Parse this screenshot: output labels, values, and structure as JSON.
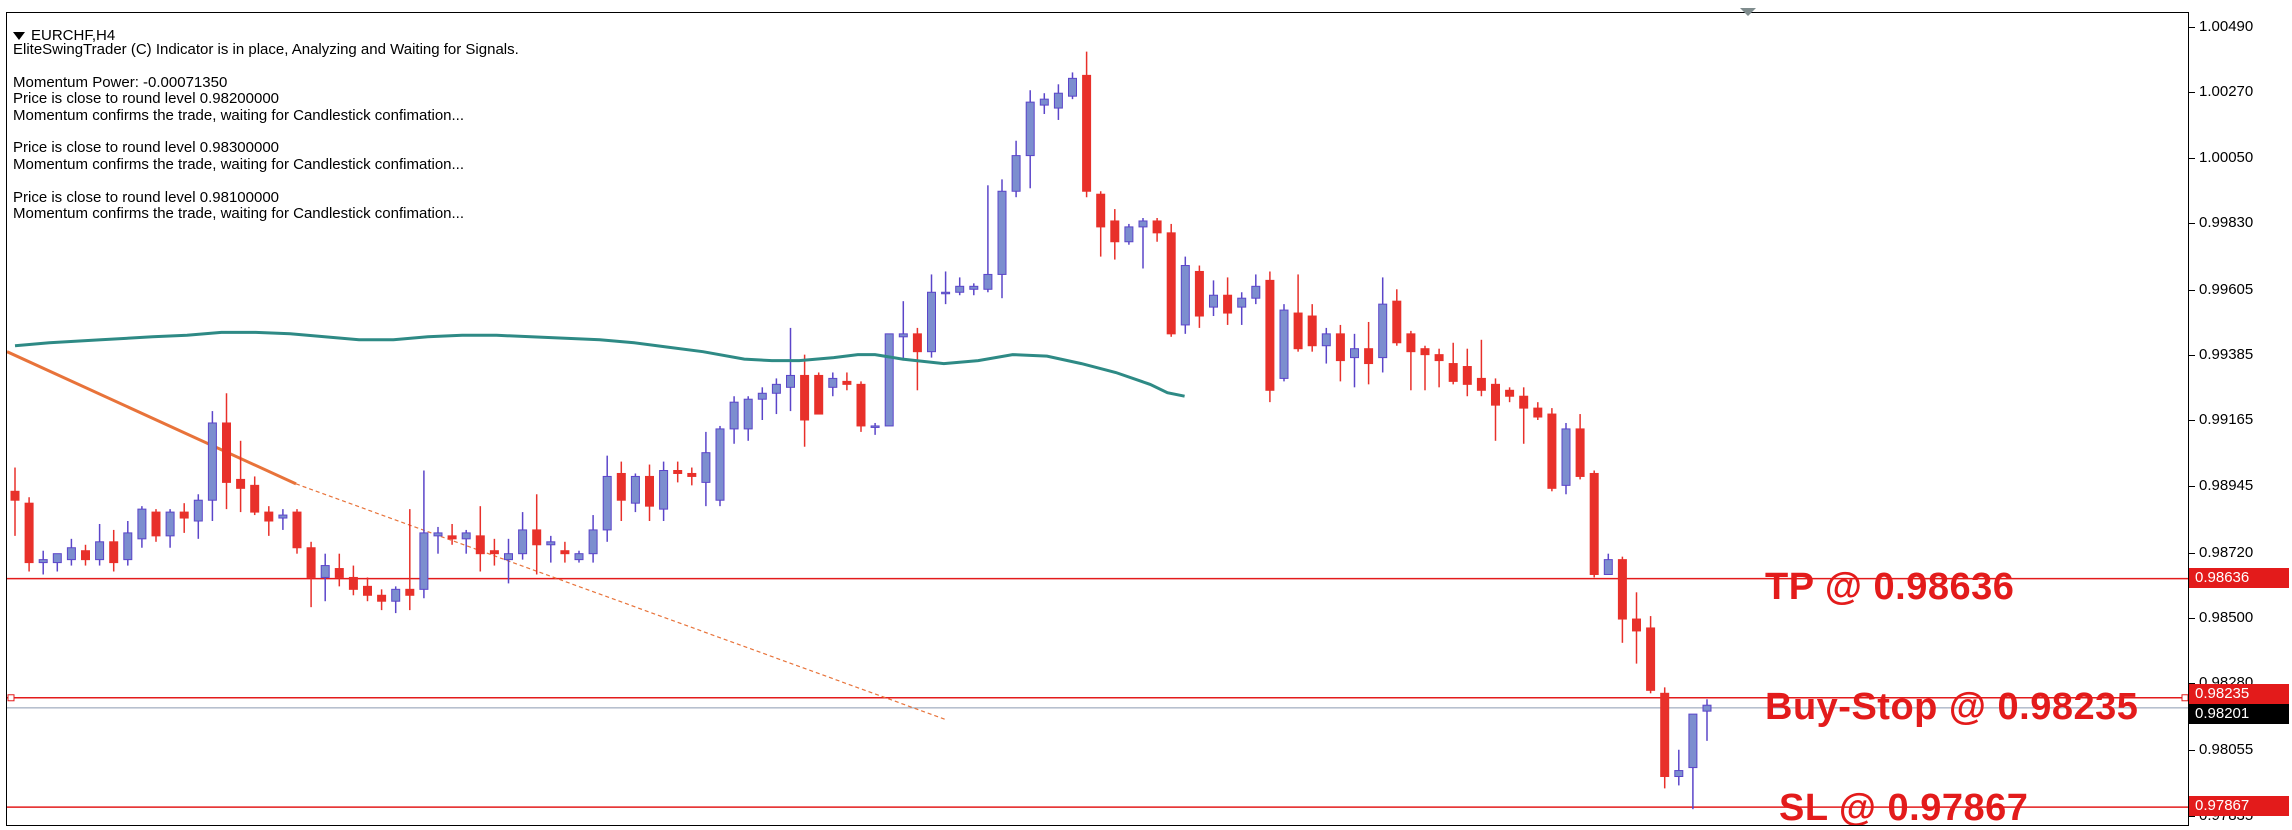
{
  "window": {
    "symbol_timeframe": "EURCHF,H4"
  },
  "indicator": {
    "headline": "EliteSwingTrader (C) Indicator is in place, Analyzing and Waiting for Signals.",
    "momentum_power": "Momentum Power: -0.00071350",
    "blocks": [
      {
        "round_level": "Price is close to round level 0.98200000",
        "confirmation": "Momentum confirms the trade, waiting for Candlestick confimation..."
      },
      {
        "round_level": "Price is close to round level 0.98300000",
        "confirmation": "Momentum confirms the trade, waiting for Candlestick confimation..."
      },
      {
        "round_level": "Price is close to round level 0.98100000",
        "confirmation": "Momentum confirms the trade, waiting for Candlestick confimation..."
      }
    ]
  },
  "trade_levels": {
    "tp": {
      "label": "TP @ 0.98636",
      "price": 0.98636,
      "box": "0.98636",
      "color": "#e31b1b"
    },
    "buy_stop": {
      "label": "Buy-Stop @ 0.98235",
      "price": 0.98235,
      "box": "0.98235",
      "color": "#e31b1b"
    },
    "sl": {
      "label": "SL @ 0.97867",
      "price": 0.97867,
      "box": "0.97867",
      "color": "#e31b1b"
    },
    "current_price": {
      "price": 0.98201,
      "box": "0.98201"
    }
  },
  "price_axis": {
    "ticks": [
      "1.00490",
      "1.00270",
      "1.00050",
      "0.99830",
      "0.99605",
      "0.99385",
      "0.99165",
      "0.98945",
      "0.98720",
      "0.98500",
      "0.98280",
      "0.98055",
      "0.97835"
    ],
    "tick_values": [
      1.0049,
      1.0027,
      1.0005,
      0.9983,
      0.99605,
      0.99385,
      0.99165,
      0.98945,
      0.9872,
      0.985,
      0.9828,
      0.98055,
      0.97835
    ]
  },
  "colors": {
    "bull": "#7c8ecf",
    "bull_border": "#5b45c9",
    "bear": "#e8302a",
    "moving_average": "#2e8a85",
    "trendline": "#e8733a",
    "level_line": "#e31b1b",
    "bid_line": "#8c9ab0"
  },
  "chart_data": {
    "type": "candlestick",
    "instrument": "EURCHF",
    "timeframe": "H4",
    "ylim": [
      0.978,
      1.0054
    ],
    "candles": [
      {
        "o": 0.9893,
        "h": 0.9901,
        "l": 0.9878,
        "c": 0.989
      },
      {
        "o": 0.9889,
        "h": 0.9891,
        "l": 0.9866,
        "c": 0.9869
      },
      {
        "o": 0.9869,
        "h": 0.9873,
        "l": 0.9865,
        "c": 0.987
      },
      {
        "o": 0.9869,
        "h": 0.9872,
        "l": 0.9866,
        "c": 0.9872
      },
      {
        "o": 0.987,
        "h": 0.9877,
        "l": 0.9868,
        "c": 0.9874
      },
      {
        "o": 0.9873,
        "h": 0.9875,
        "l": 0.9868,
        "c": 0.987
      },
      {
        "o": 0.987,
        "h": 0.9882,
        "l": 0.9868,
        "c": 0.9876
      },
      {
        "o": 0.9876,
        "h": 0.988,
        "l": 0.9866,
        "c": 0.9869
      },
      {
        "o": 0.987,
        "h": 0.9883,
        "l": 0.9868,
        "c": 0.9879
      },
      {
        "o": 0.9877,
        "h": 0.9888,
        "l": 0.9874,
        "c": 0.9887
      },
      {
        "o": 0.9886,
        "h": 0.9887,
        "l": 0.9876,
        "c": 0.9878
      },
      {
        "o": 0.9878,
        "h": 0.9887,
        "l": 0.9874,
        "c": 0.9886
      },
      {
        "o": 0.9886,
        "h": 0.9889,
        "l": 0.9879,
        "c": 0.9884
      },
      {
        "o": 0.9883,
        "h": 0.9892,
        "l": 0.9877,
        "c": 0.989
      },
      {
        "o": 0.989,
        "h": 0.992,
        "l": 0.9883,
        "c": 0.9916
      },
      {
        "o": 0.9916,
        "h": 0.9926,
        "l": 0.9887,
        "c": 0.9896
      },
      {
        "o": 0.9897,
        "h": 0.991,
        "l": 0.9886,
        "c": 0.9894
      },
      {
        "o": 0.9895,
        "h": 0.9898,
        "l": 0.9885,
        "c": 0.9886
      },
      {
        "o": 0.9886,
        "h": 0.9888,
        "l": 0.9878,
        "c": 0.9883
      },
      {
        "o": 0.9884,
        "h": 0.9887,
        "l": 0.988,
        "c": 0.9885
      },
      {
        "o": 0.9886,
        "h": 0.9887,
        "l": 0.9872,
        "c": 0.9874
      },
      {
        "o": 0.9874,
        "h": 0.9876,
        "l": 0.9854,
        "c": 0.9864
      },
      {
        "o": 0.9864,
        "h": 0.9872,
        "l": 0.9856,
        "c": 0.9868
      },
      {
        "o": 0.9867,
        "h": 0.9872,
        "l": 0.9861,
        "c": 0.9864
      },
      {
        "o": 0.9864,
        "h": 0.9868,
        "l": 0.9858,
        "c": 0.986
      },
      {
        "o": 0.9861,
        "h": 0.9864,
        "l": 0.9856,
        "c": 0.9858
      },
      {
        "o": 0.9858,
        "h": 0.986,
        "l": 0.9853,
        "c": 0.9856
      },
      {
        "o": 0.9856,
        "h": 0.9861,
        "l": 0.9852,
        "c": 0.986
      },
      {
        "o": 0.986,
        "h": 0.9887,
        "l": 0.9853,
        "c": 0.9858
      },
      {
        "o": 0.986,
        "h": 0.99,
        "l": 0.9857,
        "c": 0.9879
      },
      {
        "o": 0.9878,
        "h": 0.9881,
        "l": 0.9872,
        "c": 0.9879
      },
      {
        "o": 0.9878,
        "h": 0.9882,
        "l": 0.9875,
        "c": 0.9877
      },
      {
        "o": 0.9877,
        "h": 0.988,
        "l": 0.9872,
        "c": 0.9879
      },
      {
        "o": 0.9878,
        "h": 0.9888,
        "l": 0.9866,
        "c": 0.9872
      },
      {
        "o": 0.9873,
        "h": 0.9877,
        "l": 0.9868,
        "c": 0.9872
      },
      {
        "o": 0.987,
        "h": 0.9877,
        "l": 0.9862,
        "c": 0.9872
      },
      {
        "o": 0.9872,
        "h": 0.9886,
        "l": 0.987,
        "c": 0.988
      },
      {
        "o": 0.988,
        "h": 0.9892,
        "l": 0.9865,
        "c": 0.9875
      },
      {
        "o": 0.9875,
        "h": 0.9878,
        "l": 0.9869,
        "c": 0.9876
      },
      {
        "o": 0.9873,
        "h": 0.9876,
        "l": 0.9869,
        "c": 0.9872
      },
      {
        "o": 0.987,
        "h": 0.9873,
        "l": 0.9869,
        "c": 0.9872
      },
      {
        "o": 0.9872,
        "h": 0.9885,
        "l": 0.9869,
        "c": 0.988
      },
      {
        "o": 0.988,
        "h": 0.9905,
        "l": 0.9876,
        "c": 0.9898
      },
      {
        "o": 0.9899,
        "h": 0.9903,
        "l": 0.9883,
        "c": 0.989
      },
      {
        "o": 0.9889,
        "h": 0.9899,
        "l": 0.9886,
        "c": 0.9898
      },
      {
        "o": 0.9898,
        "h": 0.9902,
        "l": 0.9883,
        "c": 0.9888
      },
      {
        "o": 0.9887,
        "h": 0.9903,
        "l": 0.9883,
        "c": 0.99
      },
      {
        "o": 0.99,
        "h": 0.9903,
        "l": 0.9896,
        "c": 0.9899
      },
      {
        "o": 0.9899,
        "h": 0.9901,
        "l": 0.9895,
        "c": 0.9898
      },
      {
        "o": 0.9896,
        "h": 0.9913,
        "l": 0.9888,
        "c": 0.9906
      },
      {
        "o": 0.989,
        "h": 0.9915,
        "l": 0.9888,
        "c": 0.9914
      },
      {
        "o": 0.9914,
        "h": 0.9925,
        "l": 0.9909,
        "c": 0.9923
      },
      {
        "o": 0.9914,
        "h": 0.9925,
        "l": 0.991,
        "c": 0.9924
      },
      {
        "o": 0.9924,
        "h": 0.9928,
        "l": 0.9917,
        "c": 0.9926
      },
      {
        "o": 0.9926,
        "h": 0.9931,
        "l": 0.9919,
        "c": 0.9929
      },
      {
        "o": 0.9928,
        "h": 0.9948,
        "l": 0.992,
        "c": 0.9932
      },
      {
        "o": 0.9932,
        "h": 0.9939,
        "l": 0.9908,
        "c": 0.9917
      },
      {
        "o": 0.9932,
        "h": 0.9933,
        "l": 0.9919,
        "c": 0.9919
      },
      {
        "o": 0.9928,
        "h": 0.9933,
        "l": 0.9925,
        "c": 0.9931
      },
      {
        "o": 0.993,
        "h": 0.9933,
        "l": 0.9927,
        "c": 0.9929
      },
      {
        "o": 0.9929,
        "h": 0.993,
        "l": 0.9913,
        "c": 0.9915
      },
      {
        "o": 0.9915,
        "h": 0.9916,
        "l": 0.9912,
        "c": 0.9915
      },
      {
        "o": 0.9915,
        "h": 0.9946,
        "l": 0.9915,
        "c": 0.9946
      },
      {
        "o": 0.9945,
        "h": 0.9957,
        "l": 0.9937,
        "c": 0.9946
      },
      {
        "o": 0.9946,
        "h": 0.9948,
        "l": 0.9927,
        "c": 0.994
      },
      {
        "o": 0.994,
        "h": 0.9966,
        "l": 0.9938,
        "c": 0.996
      },
      {
        "o": 0.996,
        "h": 0.9967,
        "l": 0.9956,
        "c": 0.996
      },
      {
        "o": 0.996,
        "h": 0.9965,
        "l": 0.9959,
        "c": 0.9962
      },
      {
        "o": 0.9961,
        "h": 0.9963,
        "l": 0.9959,
        "c": 0.9962
      },
      {
        "o": 0.9961,
        "h": 0.9996,
        "l": 0.996,
        "c": 0.9966
      },
      {
        "o": 0.9966,
        "h": 0.9998,
        "l": 0.9958,
        "c": 0.9994
      },
      {
        "o": 0.9994,
        "h": 1.0011,
        "l": 0.9992,
        "c": 1.0006
      },
      {
        "o": 1.0006,
        "h": 1.0028,
        "l": 0.9995,
        "c": 1.0024
      },
      {
        "o": 1.0023,
        "h": 1.0027,
        "l": 1.002,
        "c": 1.0025
      },
      {
        "o": 1.0022,
        "h": 1.003,
        "l": 1.0018,
        "c": 1.0027
      },
      {
        "o": 1.0026,
        "h": 1.0034,
        "l": 1.0025,
        "c": 1.0032
      },
      {
        "o": 1.0033,
        "h": 1.0041,
        "l": 0.9992,
        "c": 0.9994
      },
      {
        "o": 0.9993,
        "h": 0.9994,
        "l": 0.9972,
        "c": 0.9982
      },
      {
        "o": 0.9984,
        "h": 0.9988,
        "l": 0.9971,
        "c": 0.9977
      },
      {
        "o": 0.9977,
        "h": 0.9983,
        "l": 0.9976,
        "c": 0.9982
      },
      {
        "o": 0.9982,
        "h": 0.9985,
        "l": 0.9968,
        "c": 0.9984
      },
      {
        "o": 0.9984,
        "h": 0.9985,
        "l": 0.9977,
        "c": 0.998
      },
      {
        "o": 0.998,
        "h": 0.9983,
        "l": 0.9945,
        "c": 0.9946
      },
      {
        "o": 0.9949,
        "h": 0.9972,
        "l": 0.9946,
        "c": 0.9969
      },
      {
        "o": 0.9967,
        "h": 0.9969,
        "l": 0.9948,
        "c": 0.9952
      },
      {
        "o": 0.9955,
        "h": 0.9964,
        "l": 0.9952,
        "c": 0.9959
      },
      {
        "o": 0.9959,
        "h": 0.9965,
        "l": 0.9949,
        "c": 0.9953
      },
      {
        "o": 0.9955,
        "h": 0.996,
        "l": 0.9949,
        "c": 0.9958
      },
      {
        "o": 0.9958,
        "h": 0.9966,
        "l": 0.9956,
        "c": 0.9962
      },
      {
        "o": 0.9964,
        "h": 0.9967,
        "l": 0.9923,
        "c": 0.9927
      },
      {
        "o": 0.9931,
        "h": 0.9956,
        "l": 0.993,
        "c": 0.9954
      },
      {
        "o": 0.9953,
        "h": 0.9966,
        "l": 0.994,
        "c": 0.9941
      },
      {
        "o": 0.9952,
        "h": 0.9956,
        "l": 0.994,
        "c": 0.9942
      },
      {
        "o": 0.9942,
        "h": 0.9948,
        "l": 0.9936,
        "c": 0.9946
      },
      {
        "o": 0.9946,
        "h": 0.9949,
        "l": 0.993,
        "c": 0.9937
      },
      {
        "o": 0.9938,
        "h": 0.9946,
        "l": 0.9928,
        "c": 0.9941
      },
      {
        "o": 0.9941,
        "h": 0.995,
        "l": 0.9929,
        "c": 0.9936
      },
      {
        "o": 0.9938,
        "h": 0.9965,
        "l": 0.9933,
        "c": 0.9956
      },
      {
        "o": 0.9957,
        "h": 0.9961,
        "l": 0.9942,
        "c": 0.9943
      },
      {
        "o": 0.9946,
        "h": 0.9947,
        "l": 0.9927,
        "c": 0.994
      },
      {
        "o": 0.9941,
        "h": 0.9942,
        "l": 0.9927,
        "c": 0.9939
      },
      {
        "o": 0.9939,
        "h": 0.9941,
        "l": 0.9928,
        "c": 0.9937
      },
      {
        "o": 0.9936,
        "h": 0.9943,
        "l": 0.9929,
        "c": 0.993
      },
      {
        "o": 0.9935,
        "h": 0.9941,
        "l": 0.9925,
        "c": 0.9929
      },
      {
        "o": 0.9931,
        "h": 0.9944,
        "l": 0.9925,
        "c": 0.9927
      },
      {
        "o": 0.9929,
        "h": 0.9931,
        "l": 0.991,
        "c": 0.9922
      },
      {
        "o": 0.9927,
        "h": 0.9928,
        "l": 0.9923,
        "c": 0.9925
      },
      {
        "o": 0.9925,
        "h": 0.9928,
        "l": 0.9909,
        "c": 0.9921
      },
      {
        "o": 0.9921,
        "h": 0.9923,
        "l": 0.9917,
        "c": 0.9918
      },
      {
        "o": 0.9919,
        "h": 0.9921,
        "l": 0.9893,
        "c": 0.9894
      },
      {
        "o": 0.9895,
        "h": 0.9916,
        "l": 0.9892,
        "c": 0.9914
      },
      {
        "o": 0.9914,
        "h": 0.9919,
        "l": 0.9897,
        "c": 0.9898
      },
      {
        "o": 0.9899,
        "h": 0.99,
        "l": 0.9864,
        "c": 0.9865
      },
      {
        "o": 0.9865,
        "h": 0.9872,
        "l": 0.9865,
        "c": 0.987
      },
      {
        "o": 0.987,
        "h": 0.9871,
        "l": 0.9842,
        "c": 0.985
      },
      {
        "o": 0.985,
        "h": 0.9859,
        "l": 0.9835,
        "c": 0.9846
      },
      {
        "o": 0.9847,
        "h": 0.9851,
        "l": 0.9825,
        "c": 0.9826
      },
      {
        "o": 0.9825,
        "h": 0.9827,
        "l": 0.9793,
        "c": 0.9797
      },
      {
        "o": 0.9797,
        "h": 0.9806,
        "l": 0.9794,
        "c": 0.9799
      },
      {
        "o": 0.98,
        "h": 0.9816,
        "l": 0.9786,
        "c": 0.9818
      },
      {
        "o": 0.9819,
        "h": 0.9823,
        "l": 0.9809,
        "c": 0.9821
      }
    ],
    "moving_average": [
      [
        0,
        0.9942
      ],
      [
        10,
        0.9943
      ],
      [
        25,
        0.9944
      ],
      [
        40,
        0.9945
      ],
      [
        50,
        0.99455
      ],
      [
        60,
        0.99465
      ],
      [
        70,
        0.99465
      ],
      [
        80,
        0.9946
      ],
      [
        90,
        0.9945
      ],
      [
        100,
        0.9944
      ],
      [
        110,
        0.9944
      ],
      [
        120,
        0.9945
      ],
      [
        130,
        0.99455
      ],
      [
        140,
        0.99455
      ],
      [
        150,
        0.9945
      ],
      [
        160,
        0.99445
      ],
      [
        170,
        0.9944
      ],
      [
        180,
        0.9943
      ],
      [
        190,
        0.99415
      ],
      [
        200,
        0.994
      ],
      [
        212,
        0.99375
      ],
      [
        220,
        0.9937
      ],
      [
        228,
        0.9937
      ],
      [
        233,
        0.99375
      ],
      [
        238,
        0.9938
      ],
      [
        245,
        0.9939
      ],
      [
        250,
        0.9939
      ],
      [
        258,
        0.99375
      ],
      [
        270,
        0.9936
      ],
      [
        280,
        0.9937
      ],
      [
        290,
        0.9939
      ],
      [
        300,
        0.99385
      ],
      [
        310,
        0.9936
      ],
      [
        320,
        0.9933
      ],
      [
        330,
        0.9929
      ],
      [
        335,
        0.99262
      ],
      [
        340,
        0.9925
      ]
    ],
    "trendline": [
      [
        0,
        0.994
      ],
      [
        289,
        0.98955
      ]
    ],
    "trendline_extension": [
      [
        289,
        0.98955
      ],
      [
        940,
        0.9816
      ]
    ]
  }
}
